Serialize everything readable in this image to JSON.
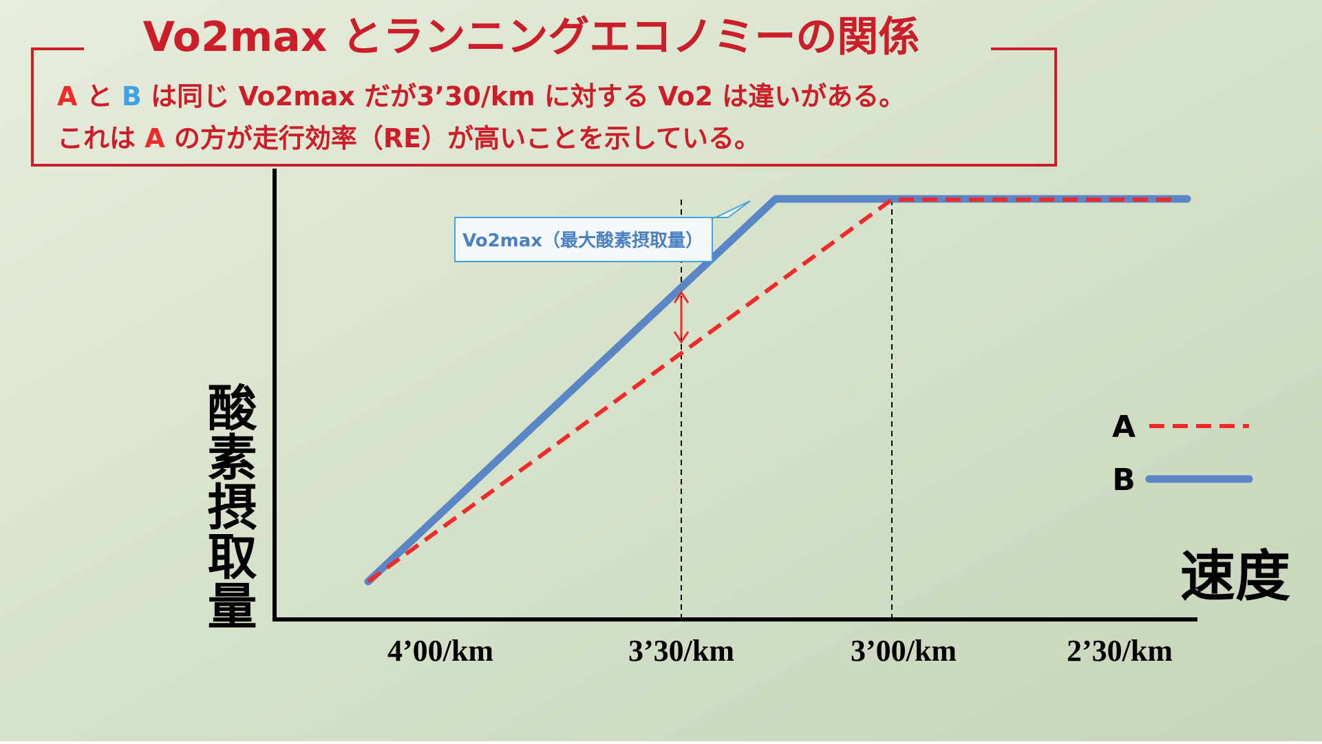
{
  "title": "Vo2max とランニングエコノミーの関係",
  "description": [
    [
      {
        "text": "A",
        "color": "#ee2a2a"
      },
      {
        "text": " と ",
        "color": "#cc1e2a"
      },
      {
        "text": "B",
        "color": "#3fa1e6"
      },
      {
        "text": " は同じ Vo2max だが3’30/km に対する Vo2 は違いがある。",
        "color": "#cc1e2a"
      }
    ],
    [
      {
        "text": "これは ",
        "color": "#cc1e2a"
      },
      {
        "text": "A",
        "color": "#ee2a2a"
      },
      {
        "text": " の方が走行効率（RE）が高いことを示している。",
        "color": "#cc1e2a"
      }
    ]
  ],
  "callout": "Vo2max（最大酸素摂取量）",
  "y_axis_label": "酸素摂取量",
  "x_axis_label": "速度",
  "x_ticks": [
    "4’00/km",
    "3’30/km",
    "3’00/km",
    "2’30/km"
  ],
  "legend": [
    {
      "name": "A",
      "color": "#ee2a2a"
    },
    {
      "name": "B",
      "color": "#5b86c6"
    }
  ]
}
